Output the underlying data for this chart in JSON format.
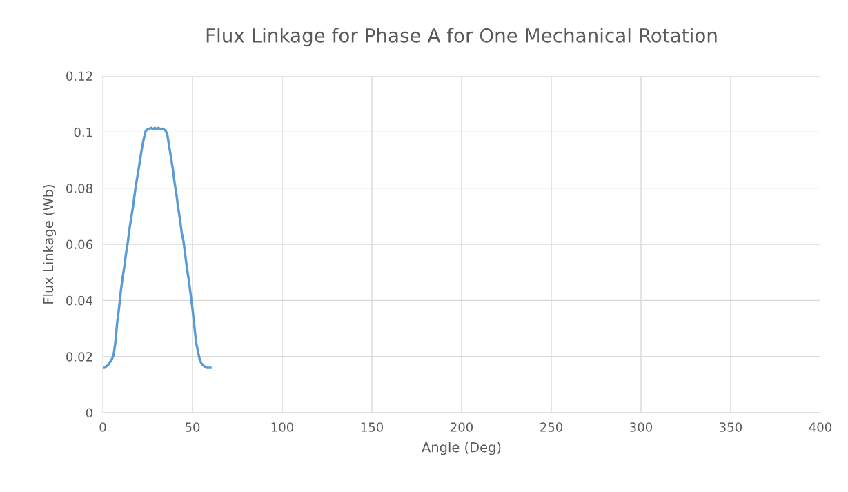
{
  "chart_data": {
    "type": "line",
    "title": "Flux Linkage for Phase A for One Mechanical Rotation",
    "xlabel": "Angle (Deg)",
    "ylabel": "Flux Linkage (Wb)",
    "x": [
      0,
      1,
      2,
      3,
      4,
      5,
      6,
      7,
      8,
      9,
      10,
      11,
      12,
      13,
      14,
      15,
      16,
      17,
      18,
      19,
      20,
      21,
      22,
      23,
      24,
      25,
      26,
      27,
      28,
      29,
      30,
      31,
      32,
      33,
      34,
      35,
      36,
      37,
      38,
      39,
      40,
      41,
      42,
      43,
      44,
      45,
      46,
      47,
      48,
      49,
      50,
      51,
      52,
      53,
      54,
      55,
      56,
      57,
      58,
      60
    ],
    "series": [
      {
        "color": "#5b9bd5",
        "values": [
          0.016,
          0.016,
          0.0165,
          0.017,
          0.018,
          0.019,
          0.0205,
          0.025,
          0.032,
          0.037,
          0.043,
          0.048,
          0.052,
          0.057,
          0.061,
          0.066,
          0.07,
          0.074,
          0.079,
          0.083,
          0.087,
          0.091,
          0.095,
          0.098,
          0.1005,
          0.101,
          0.1012,
          0.1015,
          0.101,
          0.1015,
          0.101,
          0.1015,
          0.101,
          0.1012,
          0.101,
          0.1005,
          0.099,
          0.095,
          0.091,
          0.087,
          0.082,
          0.078,
          0.073,
          0.069,
          0.064,
          0.061,
          0.056,
          0.051,
          0.047,
          0.042,
          0.037,
          0.031,
          0.025,
          0.022,
          0.019,
          0.0175,
          0.0168,
          0.0163,
          0.016,
          0.016
        ]
      }
    ],
    "xlim": [
      0,
      400
    ],
    "xticks": [
      0,
      50,
      100,
      150,
      200,
      250,
      300,
      350,
      400
    ],
    "ylim": [
      0,
      0.12
    ],
    "yticks": [
      0,
      0.02,
      0.04,
      0.06,
      0.08,
      0.1,
      0.12
    ],
    "grid": true,
    "marker": "none",
    "line_style": "solid"
  }
}
